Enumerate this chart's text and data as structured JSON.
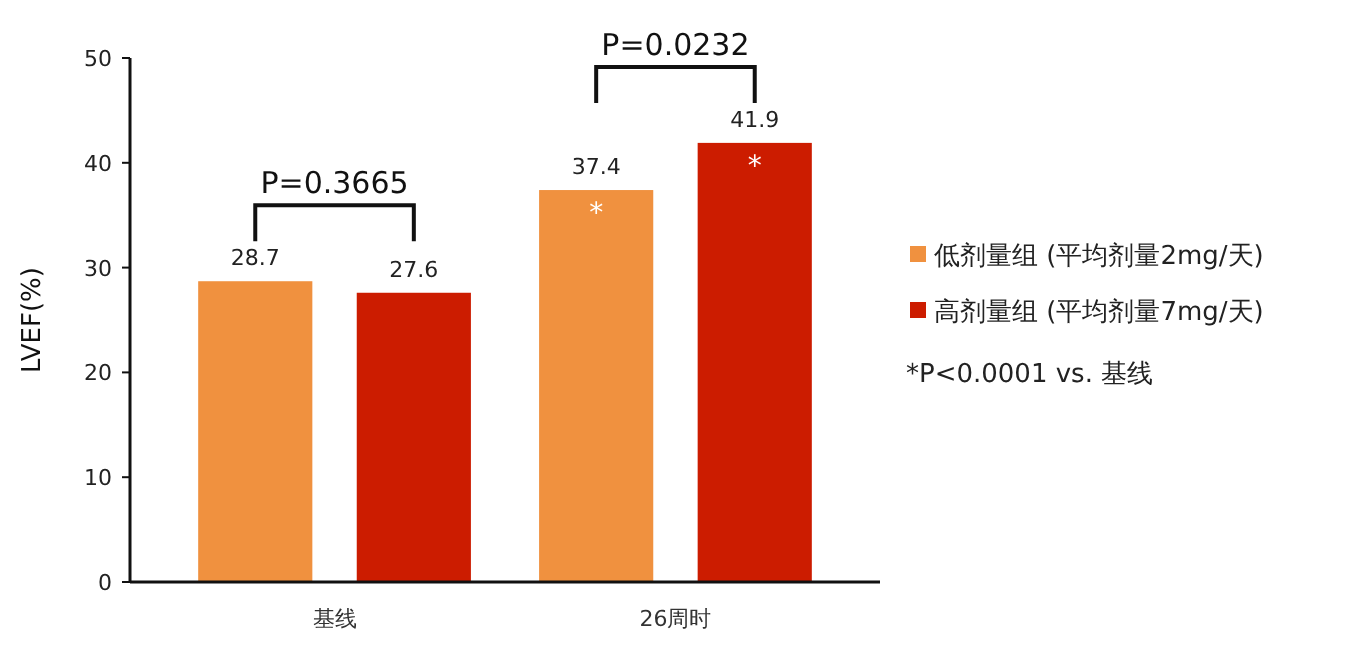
{
  "chart_data": {
    "type": "bar",
    "ylabel": "LVEF(%)",
    "categories": [
      "基线",
      "26周时"
    ],
    "series": [
      {
        "name": "低剂量组 (平均剂量2mg/天)",
        "color": "#f0913f",
        "values": [
          28.7,
          37.4
        ]
      },
      {
        "name": "高剂量组 (平均剂量7mg/天)",
        "color": "#cc1c00",
        "values": [
          27.6,
          41.9
        ]
      }
    ],
    "ylim": [
      0,
      50
    ],
    "yticks": [
      0,
      10,
      20,
      30,
      40,
      50
    ],
    "data_labels": true,
    "grid": false,
    "legend": "right",
    "annotations": [
      "P=0.3665",
      "P=0.0232",
      "*",
      "*",
      "*P<0.0001 vs. 基线"
    ]
  }
}
